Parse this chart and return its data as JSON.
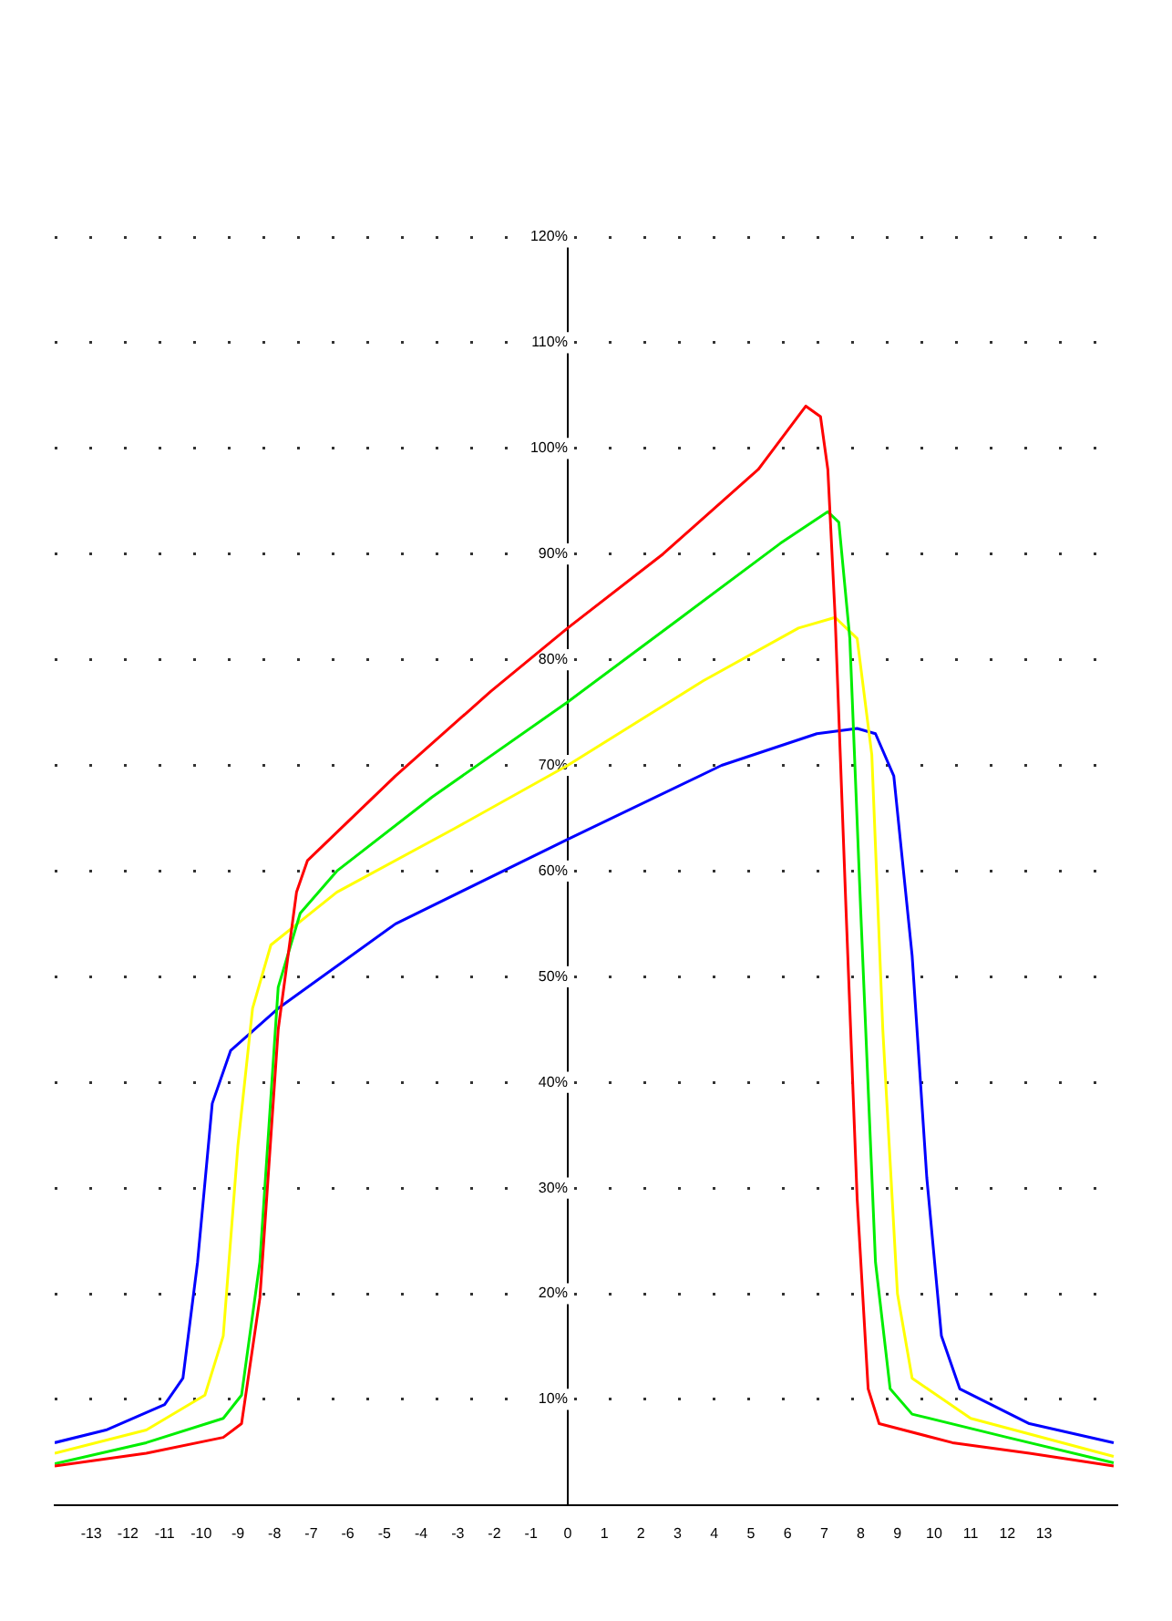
{
  "chart_data": {
    "type": "line",
    "xlim": [
      -14,
      15
    ],
    "ylim": [
      0,
      120
    ],
    "xticks": [
      -13,
      -12,
      -11,
      -10,
      -9,
      -8,
      -7,
      -6,
      -5,
      -4,
      -3,
      -2,
      -1,
      0,
      1,
      2,
      3,
      4,
      5,
      6,
      7,
      8,
      9,
      10,
      11,
      12,
      13
    ],
    "yticks": [
      {
        "value": 10,
        "label": "10%"
      },
      {
        "value": 20,
        "label": "20%"
      },
      {
        "value": 30,
        "label": "30%"
      },
      {
        "value": 40,
        "label": "40%"
      },
      {
        "value": 50,
        "label": "50%"
      },
      {
        "value": 60,
        "label": "60%"
      },
      {
        "value": 70,
        "label": "70%"
      },
      {
        "value": 80,
        "label": "80%"
      },
      {
        "value": 90,
        "label": "90%"
      },
      {
        "value": 100,
        "label": "100%"
      },
      {
        "value": 110,
        "label": "110%"
      },
      {
        "value": 120,
        "label": "120%"
      }
    ],
    "grid": "y",
    "legend": false,
    "marker": "none",
    "line_style": "solid",
    "series": [
      {
        "color": "#ff0000",
        "x": [
          -14,
          -11.5,
          -9.4,
          -8.9,
          -8.4,
          -7.9,
          -7.4,
          -7.1,
          -4.7,
          -2.1,
          0,
          2.6,
          5.2,
          6.5,
          6.9,
          7.1,
          7.3,
          7.6,
          7.9,
          8.2,
          8.5,
          10.5,
          12.6,
          14.9
        ],
        "values": [
          3.7,
          4.9,
          6.4,
          7.7,
          19.6,
          45,
          58,
          61,
          69,
          77,
          83,
          90,
          98,
          104,
          103,
          98,
          84,
          56,
          29,
          11,
          7.7,
          5.9,
          4.9,
          3.7
        ]
      },
      {
        "color": "#00ee00",
        "x": [
          -14,
          -11.5,
          -9.4,
          -8.9,
          -8.4,
          -7.9,
          -7.3,
          -6.3,
          -3.7,
          0,
          3.1,
          5.8,
          7.1,
          7.4,
          7.7,
          8,
          8.4,
          8.8,
          9.4,
          12,
          14.9
        ],
        "values": [
          3.9,
          5.9,
          8.2,
          10.4,
          23,
          49,
          56,
          60,
          67,
          76,
          84,
          91,
          94,
          93,
          82,
          56,
          23,
          11,
          8.6,
          6.4,
          4
        ]
      },
      {
        "color": "#ffff00",
        "x": [
          -14,
          -11.5,
          -9.9,
          -9.4,
          -9,
          -8.6,
          -8.1,
          -6.3,
          -3.1,
          0,
          3.7,
          6.3,
          7.3,
          7.9,
          8.3,
          8.6,
          9,
          9.4,
          11,
          14.9
        ],
        "values": [
          4.9,
          7.1,
          10.4,
          16,
          34,
          47,
          53,
          58,
          64,
          70,
          78,
          83,
          84,
          82,
          71,
          45,
          20,
          12,
          8.2,
          4.6
        ]
      },
      {
        "color": "#0000ff",
        "x": [
          -14,
          -12.6,
          -11,
          -10.5,
          -10.1,
          -9.7,
          -9.2,
          -7.9,
          -4.7,
          0,
          4.2,
          6.8,
          7.9,
          8.4,
          8.9,
          9.4,
          9.8,
          10.2,
          10.7,
          12.6,
          14.9
        ],
        "values": [
          5.9,
          7.1,
          9.5,
          12,
          23,
          38,
          43,
          47,
          55,
          63,
          70,
          73,
          73.5,
          73,
          69,
          52,
          31,
          16,
          11,
          7.7,
          5.9
        ]
      }
    ]
  }
}
